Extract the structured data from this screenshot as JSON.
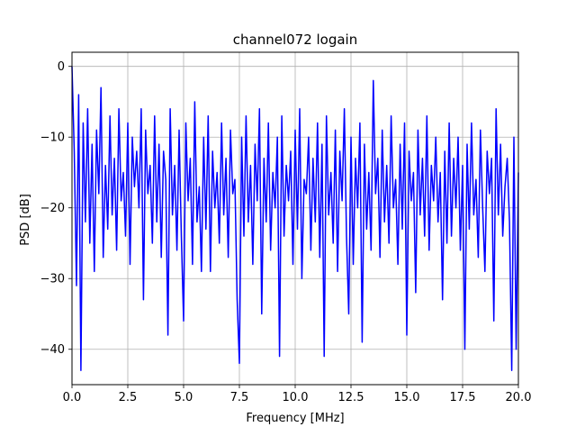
{
  "chart_data": {
    "type": "line",
    "title": "channel072 logain",
    "xlabel": "Frequency [MHz]",
    "ylabel": "PSD [dB]",
    "xlim": [
      0,
      20
    ],
    "ylim": [
      -45,
      2
    ],
    "xticks": [
      0,
      2.5,
      5,
      7.5,
      10,
      12.5,
      15,
      17.5,
      20
    ],
    "xtick_labels": [
      "0.0",
      "2.5",
      "5.0",
      "7.5",
      "10.0",
      "12.5",
      "15.0",
      "17.5",
      "20.0"
    ],
    "yticks": [
      0,
      -10,
      -20,
      -30,
      -40
    ],
    "ytick_labels": [
      "0",
      "−10",
      "−20",
      "−30",
      "−40"
    ],
    "grid": true,
    "series": [
      {
        "color": "#0000ff",
        "x": [
          0.0,
          0.1,
          0.2,
          0.3,
          0.4,
          0.5,
          0.6,
          0.7,
          0.8,
          0.9,
          1.0,
          1.1,
          1.2,
          1.3,
          1.4,
          1.5,
          1.6,
          1.7,
          1.8,
          1.9,
          2.0,
          2.1,
          2.2,
          2.3,
          2.4,
          2.5,
          2.6,
          2.7,
          2.8,
          2.9,
          3.0,
          3.1,
          3.2,
          3.3,
          3.4,
          3.5,
          3.6,
          3.7,
          3.8,
          3.9,
          4.0,
          4.1,
          4.2,
          4.3,
          4.4,
          4.5,
          4.6,
          4.7,
          4.8,
          4.9,
          5.0,
          5.1,
          5.2,
          5.3,
          5.4,
          5.5,
          5.6,
          5.7,
          5.8,
          5.9,
          6.0,
          6.1,
          6.2,
          6.3,
          6.4,
          6.5,
          6.6,
          6.7,
          6.8,
          6.9,
          7.0,
          7.1,
          7.2,
          7.3,
          7.4,
          7.5,
          7.6,
          7.7,
          7.8,
          7.9,
          8.0,
          8.1,
          8.2,
          8.3,
          8.4,
          8.5,
          8.6,
          8.7,
          8.8,
          8.9,
          9.0,
          9.1,
          9.2,
          9.3,
          9.4,
          9.5,
          9.6,
          9.7,
          9.8,
          9.9,
          10.0,
          10.1,
          10.2,
          10.3,
          10.4,
          10.5,
          10.6,
          10.7,
          10.8,
          10.9,
          11.0,
          11.1,
          11.2,
          11.3,
          11.4,
          11.5,
          11.6,
          11.7,
          11.8,
          11.9,
          12.0,
          12.1,
          12.2,
          12.3,
          12.4,
          12.5,
          12.6,
          12.7,
          12.8,
          12.9,
          13.0,
          13.1,
          13.2,
          13.3,
          13.4,
          13.5,
          13.6,
          13.7,
          13.8,
          13.9,
          14.0,
          14.1,
          14.2,
          14.3,
          14.4,
          14.5,
          14.6,
          14.7,
          14.8,
          14.9,
          15.0,
          15.1,
          15.2,
          15.3,
          15.4,
          15.5,
          15.6,
          15.7,
          15.8,
          15.9,
          16.0,
          16.1,
          16.2,
          16.3,
          16.4,
          16.5,
          16.6,
          16.7,
          16.8,
          16.9,
          17.0,
          17.1,
          17.2,
          17.3,
          17.4,
          17.5,
          17.6,
          17.7,
          17.8,
          17.9,
          18.0,
          18.1,
          18.2,
          18.3,
          18.4,
          18.5,
          18.6,
          18.7,
          18.8,
          18.9,
          19.0,
          19.1,
          19.2,
          19.3,
          19.4,
          19.5,
          19.6,
          19.7,
          19.8,
          19.9,
          20.0
        ],
        "y": [
          0,
          -12,
          -31,
          -4,
          -43,
          -8,
          -22,
          -6,
          -25,
          -11,
          -29,
          -9,
          -18,
          -3,
          -27,
          -14,
          -23,
          -7,
          -21,
          -13,
          -26,
          -6,
          -19,
          -15,
          -24,
          -8,
          -28,
          -10,
          -17,
          -12,
          -20,
          -6,
          -33,
          -9,
          -18,
          -14,
          -25,
          -7,
          -22,
          -11,
          -27,
          -12,
          -16,
          -38,
          -6,
          -21,
          -14,
          -26,
          -9,
          -24,
          -36,
          -8,
          -19,
          -13,
          -28,
          -5,
          -22,
          -17,
          -29,
          -10,
          -23,
          -7,
          -29,
          -12,
          -20,
          -15,
          -25,
          -8,
          -21,
          -13,
          -27,
          -9,
          -18,
          -16,
          -33,
          -42,
          -10,
          -24,
          -7,
          -22,
          -14,
          -28,
          -11,
          -19,
          -6,
          -35,
          -13,
          -22,
          -8,
          -26,
          -15,
          -20,
          -10,
          -41,
          -7,
          -24,
          -14,
          -19,
          -12,
          -28,
          -9,
          -23,
          -6,
          -30,
          -16,
          -18,
          -10,
          -26,
          -13,
          -22,
          -8,
          -27,
          -11,
          -41,
          -7,
          -21,
          -15,
          -25,
          -9,
          -29,
          -12,
          -19,
          -6,
          -24,
          -35,
          -10,
          -28,
          -13,
          -20,
          -8,
          -39,
          -11,
          -23,
          -15,
          -26,
          -2,
          -18,
          -13,
          -27,
          -9,
          -22,
          -14,
          -25,
          -7,
          -20,
          -16,
          -28,
          -11,
          -23,
          -8,
          -38,
          -12,
          -19,
          -15,
          -32,
          -9,
          -21,
          -13,
          -24,
          -7,
          -26,
          -14,
          -19,
          -10,
          -22,
          -15,
          -33,
          -12,
          -25,
          -8,
          -24,
          -13,
          -20,
          -10,
          -26,
          -14,
          -40,
          -11,
          -23,
          -8,
          -21,
          -16,
          -27,
          -9,
          -20,
          -29,
          -12,
          -18,
          -13,
          -36,
          -6,
          -21,
          -11,
          -24,
          -17,
          -13,
          -22,
          -43,
          -10,
          -40,
          -15
        ]
      }
    ]
  }
}
